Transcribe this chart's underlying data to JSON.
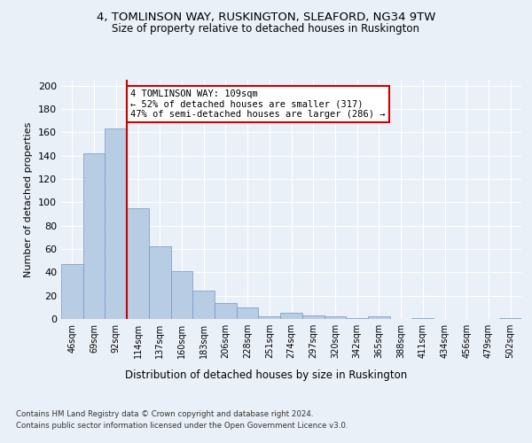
{
  "title1": "4, TOMLINSON WAY, RUSKINGTON, SLEAFORD, NG34 9TW",
  "title2": "Size of property relative to detached houses in Ruskington",
  "xlabel": "Distribution of detached houses by size in Ruskington",
  "ylabel": "Number of detached properties",
  "bar_labels": [
    "46sqm",
    "69sqm",
    "92sqm",
    "114sqm",
    "137sqm",
    "160sqm",
    "183sqm",
    "206sqm",
    "228sqm",
    "251sqm",
    "274sqm",
    "297sqm",
    "320sqm",
    "342sqm",
    "365sqm",
    "388sqm",
    "411sqm",
    "434sqm",
    "456sqm",
    "479sqm",
    "502sqm"
  ],
  "bar_values": [
    47,
    142,
    163,
    95,
    62,
    41,
    24,
    14,
    10,
    2,
    5,
    3,
    2,
    1,
    2,
    0,
    1,
    0,
    0,
    0,
    1
  ],
  "bar_color": "#b8cce4",
  "bar_edge_color": "#7099c4",
  "vline_color": "#cc0000",
  "annotation_text": "4 TOMLINSON WAY: 109sqm\n← 52% of detached houses are smaller (317)\n47% of semi-detached houses are larger (286) →",
  "annotation_box_color": "#ffffff",
  "annotation_box_edge": "#cc0000",
  "bg_color": "#eaf0f8",
  "plot_bg_color": "#eaf0f8",
  "grid_color": "#ffffff",
  "footer1": "Contains HM Land Registry data © Crown copyright and database right 2024.",
  "footer2": "Contains public sector information licensed under the Open Government Licence v3.0.",
  "ylim": [
    0,
    205
  ],
  "yticks": [
    0,
    20,
    40,
    60,
    80,
    100,
    120,
    140,
    160,
    180,
    200
  ]
}
